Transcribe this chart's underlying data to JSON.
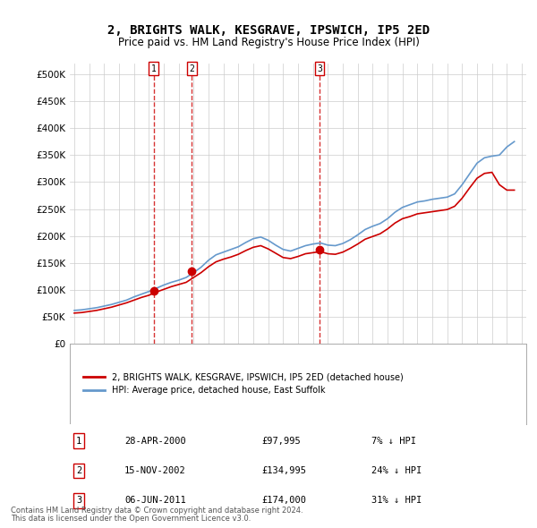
{
  "title": "2, BRIGHTS WALK, KESGRAVE, IPSWICH, IP5 2ED",
  "subtitle": "Price paid vs. HM Land Registry's House Price Index (HPI)",
  "ylabel_ticks": [
    "£0",
    "£50K",
    "£100K",
    "£150K",
    "£200K",
    "£250K",
    "£300K",
    "£350K",
    "£400K",
    "£450K",
    "£500K"
  ],
  "ytick_values": [
    0,
    50000,
    100000,
    150000,
    200000,
    250000,
    300000,
    350000,
    400000,
    450000,
    500000
  ],
  "ylim": [
    0,
    520000
  ],
  "x_start_year": 1995,
  "x_end_year": 2025,
  "sale_dates": [
    "28-APR-2000",
    "15-NOV-2002",
    "06-JUN-2011"
  ],
  "sale_prices": [
    97995,
    134995,
    174000
  ],
  "sale_years": [
    2000.32,
    2002.88,
    2011.44
  ],
  "sale_labels": [
    "1",
    "2",
    "3"
  ],
  "sale_hpi_pct": [
    "7% ↓ HPI",
    "24% ↓ HPI",
    "31% ↓ HPI"
  ],
  "legend_property": "2, BRIGHTS WALK, KESGRAVE, IPSWICH, IP5 2ED (detached house)",
  "legend_hpi": "HPI: Average price, detached house, East Suffolk",
  "footer1": "Contains HM Land Registry data © Crown copyright and database right 2024.",
  "footer2": "This data is licensed under the Open Government Licence v3.0.",
  "red_color": "#cc0000",
  "blue_color": "#6699cc",
  "bg_color": "#ffffff",
  "grid_color": "#cccccc",
  "hpi_years": [
    1995,
    1995.5,
    1996,
    1996.5,
    1997,
    1997.5,
    1998,
    1998.5,
    1999,
    1999.5,
    2000,
    2000.5,
    2001,
    2001.5,
    2002,
    2002.5,
    2003,
    2003.5,
    2004,
    2004.5,
    2005,
    2005.5,
    2006,
    2006.5,
    2007,
    2007.5,
    2008,
    2008.5,
    2009,
    2009.5,
    2010,
    2010.5,
    2011,
    2011.5,
    2012,
    2012.5,
    2013,
    2013.5,
    2014,
    2014.5,
    2015,
    2015.5,
    2016,
    2016.5,
    2017,
    2017.5,
    2018,
    2018.5,
    2019,
    2019.5,
    2020,
    2020.5,
    2021,
    2021.5,
    2022,
    2022.5,
    2023,
    2023.5,
    2024,
    2024.5
  ],
  "hpi_values": [
    62000,
    63000,
    65000,
    67000,
    70000,
    73000,
    77000,
    81000,
    87000,
    92000,
    97000,
    103000,
    109000,
    114000,
    118000,
    123000,
    132000,
    142000,
    155000,
    165000,
    170000,
    175000,
    180000,
    188000,
    195000,
    198000,
    192000,
    183000,
    175000,
    172000,
    177000,
    182000,
    185000,
    187000,
    183000,
    182000,
    186000,
    193000,
    202000,
    212000,
    218000,
    223000,
    232000,
    244000,
    253000,
    258000,
    263000,
    265000,
    268000,
    270000,
    272000,
    278000,
    295000,
    315000,
    335000,
    345000,
    348000,
    350000,
    365000,
    375000
  ],
  "prop_years": [
    1995,
    1995.5,
    1996,
    1996.5,
    1997,
    1997.5,
    1998,
    1998.5,
    1999,
    1999.5,
    2000,
    2000.5,
    2001,
    2001.5,
    2002,
    2002.5,
    2003,
    2003.5,
    2004,
    2004.5,
    2005,
    2005.5,
    2006,
    2006.5,
    2007,
    2007.5,
    2008,
    2008.5,
    2009,
    2009.5,
    2010,
    2010.5,
    2011,
    2011.5,
    2012,
    2012.5,
    2013,
    2013.5,
    2014,
    2014.5,
    2015,
    2015.5,
    2016,
    2016.5,
    2017,
    2017.5,
    2018,
    2018.5,
    2019,
    2019.5,
    2020,
    2020.5,
    2021,
    2021.5,
    2022,
    2022.5,
    2023,
    2023.5,
    2024,
    2024.5
  ],
  "prop_values": [
    57000,
    58000,
    60000,
    62000,
    65000,
    68000,
    72000,
    76000,
    81000,
    86000,
    90000,
    96000,
    101000,
    106000,
    110000,
    114000,
    123000,
    132000,
    143000,
    152000,
    157000,
    161000,
    166000,
    173000,
    179000,
    182000,
    176000,
    168000,
    160000,
    158000,
    162000,
    167000,
    169000,
    171000,
    167000,
    166000,
    170000,
    177000,
    185000,
    194000,
    199000,
    204000,
    213000,
    224000,
    232000,
    236000,
    241000,
    243000,
    245000,
    247000,
    249000,
    255000,
    270000,
    289000,
    307000,
    316000,
    318000,
    295000,
    285000,
    285000
  ]
}
